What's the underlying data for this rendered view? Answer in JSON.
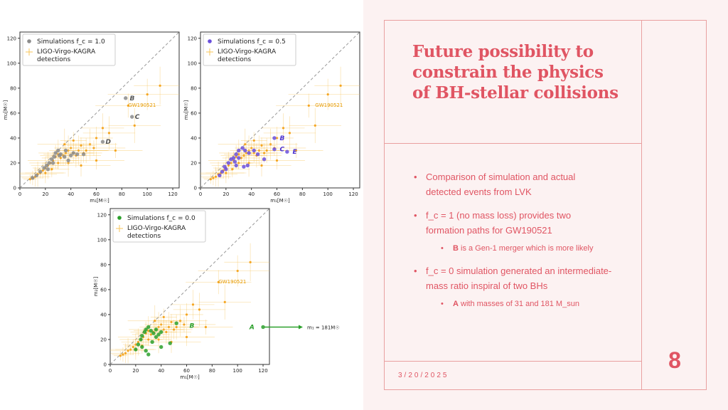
{
  "slide": {
    "title": "Future possibility to constrain the physics of BH-stellar collisions",
    "bullets": [
      {
        "text": "Comparison of simulation and actual detected events from LVK"
      },
      {
        "text": "f_c = 1 (no mass loss) provides two formation paths for GW190521",
        "sub": {
          "bold": "B",
          "text": " is a Gen-1 merger which is more likely"
        }
      },
      {
        "text": "f_c = 0 simulation generated an intermediate-mass ratio inspiral of two BHs",
        "sub": {
          "bold": "A",
          "text": " with masses of 31 and 181 M_sun"
        }
      }
    ],
    "page_number": "8",
    "date": "3/20/2025",
    "colors": {
      "accent": "#e05563",
      "panel": "#fcf2f2",
      "rule": "#e9a0a0"
    }
  },
  "plots": [
    {
      "panel": "fc-1.0",
      "legend": {
        "sim": "Simulations f_c = 1.0",
        "ligo_1": "LIGO-Virgo-KAGRA",
        "ligo_2": "detections"
      },
      "sim_color": "#8c8c8c",
      "xlabel": "m₁[M☉]",
      "ylabel": "m₂[M☉]",
      "ticks": [
        0,
        20,
        40,
        60,
        80,
        100,
        120
      ],
      "gw_label": "GW190521",
      "annotations": [
        {
          "label": "B",
          "x": 84,
          "y": 72
        },
        {
          "label": "C",
          "x": 88,
          "y": 57
        },
        {
          "label": "D",
          "x": 65,
          "y": 37
        }
      ],
      "points": [
        [
          10,
          8
        ],
        [
          13,
          10
        ],
        [
          16,
          13
        ],
        [
          19,
          16
        ],
        [
          21,
          18
        ],
        [
          23,
          20
        ],
        [
          25,
          23
        ],
        [
          27,
          25
        ],
        [
          28,
          28
        ],
        [
          30,
          30
        ],
        [
          32,
          27
        ],
        [
          35,
          25
        ],
        [
          38,
          22
        ],
        [
          40,
          26
        ],
        [
          45,
          27
        ],
        [
          50,
          27
        ],
        [
          22,
          15
        ],
        [
          26,
          20
        ],
        [
          31,
          26
        ],
        [
          36,
          30
        ],
        [
          42,
          28
        ],
        [
          83,
          72
        ],
        [
          88,
          57
        ],
        [
          65,
          37
        ]
      ]
    },
    {
      "panel": "fc-0.5",
      "legend": {
        "sim": "Simulations f_c = 0.5",
        "ligo_1": "LIGO-Virgo-KAGRA",
        "ligo_2": "detections"
      },
      "sim_color": "#6a4fdc",
      "xlabel": "m₁[M☉]",
      "ylabel": "m₂[M☉]",
      "ticks": [
        0,
        20,
        40,
        60,
        80,
        100,
        120
      ],
      "gw_label": "GW190521",
      "annotations": [
        {
          "label": "B",
          "x": 60,
          "y": 40
        },
        {
          "label": "C",
          "x": 60,
          "y": 31
        },
        {
          "label": "E",
          "x": 70,
          "y": 29
        }
      ],
      "points": [
        [
          15,
          10
        ],
        [
          17,
          13
        ],
        [
          19,
          17
        ],
        [
          22,
          20
        ],
        [
          24,
          23
        ],
        [
          26,
          24
        ],
        [
          28,
          27
        ],
        [
          30,
          30
        ],
        [
          33,
          32
        ],
        [
          35,
          30
        ],
        [
          38,
          28
        ],
        [
          42,
          30
        ],
        [
          45,
          27
        ],
        [
          50,
          23
        ],
        [
          20,
          15
        ],
        [
          27,
          21
        ],
        [
          30,
          24
        ],
        [
          34,
          17
        ],
        [
          37,
          18
        ],
        [
          28,
          18
        ],
        [
          58,
          40
        ],
        [
          58,
          31
        ],
        [
          68,
          29
        ]
      ]
    },
    {
      "panel": "fc-0.0",
      "legend": {
        "sim": "Simulations f_c = 0.0",
        "ligo_1": "LIGO-Virgo-KAGRA",
        "ligo_2": "detections"
      },
      "sim_color": "#2ca02c",
      "xlabel": "m₁[M☉]",
      "ylabel": "m₂[M☉]",
      "ticks": [
        0,
        20,
        40,
        60,
        80,
        100,
        120
      ],
      "gw_label": "GW190521",
      "annotations": [
        {
          "label": "B",
          "x": 60,
          "y": 31
        },
        {
          "label": "A",
          "x": 116,
          "y": 30
        }
      ],
      "arrow_label": "m₁ = 181M☉",
      "points": [
        [
          20,
          12
        ],
        [
          22,
          16
        ],
        [
          24,
          20
        ],
        [
          25,
          23
        ],
        [
          27,
          26
        ],
        [
          28,
          28
        ],
        [
          30,
          30
        ],
        [
          32,
          27
        ],
        [
          34,
          25
        ],
        [
          36,
          22
        ],
        [
          38,
          24
        ],
        [
          40,
          26
        ],
        [
          25,
          14
        ],
        [
          28,
          11
        ],
        [
          30,
          8
        ],
        [
          33,
          18
        ],
        [
          36,
          28
        ],
        [
          47,
          17
        ],
        [
          52,
          33
        ],
        [
          40,
          14
        ],
        [
          120,
          30
        ]
      ]
    }
  ],
  "ligo_points": [
    [
      8,
      7
    ],
    [
      10,
      8
    ],
    [
      12,
      9
    ],
    [
      14,
      11
    ],
    [
      16,
      12
    ],
    [
      18,
      14
    ],
    [
      20,
      16
    ],
    [
      22,
      18
    ],
    [
      24,
      20
    ],
    [
      26,
      22
    ],
    [
      28,
      25
    ],
    [
      30,
      27
    ],
    [
      32,
      24
    ],
    [
      34,
      26
    ],
    [
      36,
      28
    ],
    [
      38,
      30
    ],
    [
      40,
      32
    ],
    [
      42,
      28
    ],
    [
      44,
      26
    ],
    [
      46,
      30
    ],
    [
      48,
      34
    ],
    [
      50,
      28
    ],
    [
      52,
      30
    ],
    [
      55,
      35
    ],
    [
      58,
      32
    ],
    [
      60,
      40
    ],
    [
      65,
      48
    ],
    [
      70,
      44
    ],
    [
      85,
      66
    ],
    [
      100,
      75
    ],
    [
      110,
      82
    ],
    [
      90,
      50
    ],
    [
      75,
      30
    ],
    [
      60,
      22
    ],
    [
      48,
      18
    ],
    [
      38,
      20
    ],
    [
      30,
      20
    ],
    [
      25,
      15
    ],
    [
      20,
      12
    ],
    [
      35,
      35
    ],
    [
      42,
      38
    ]
  ]
}
